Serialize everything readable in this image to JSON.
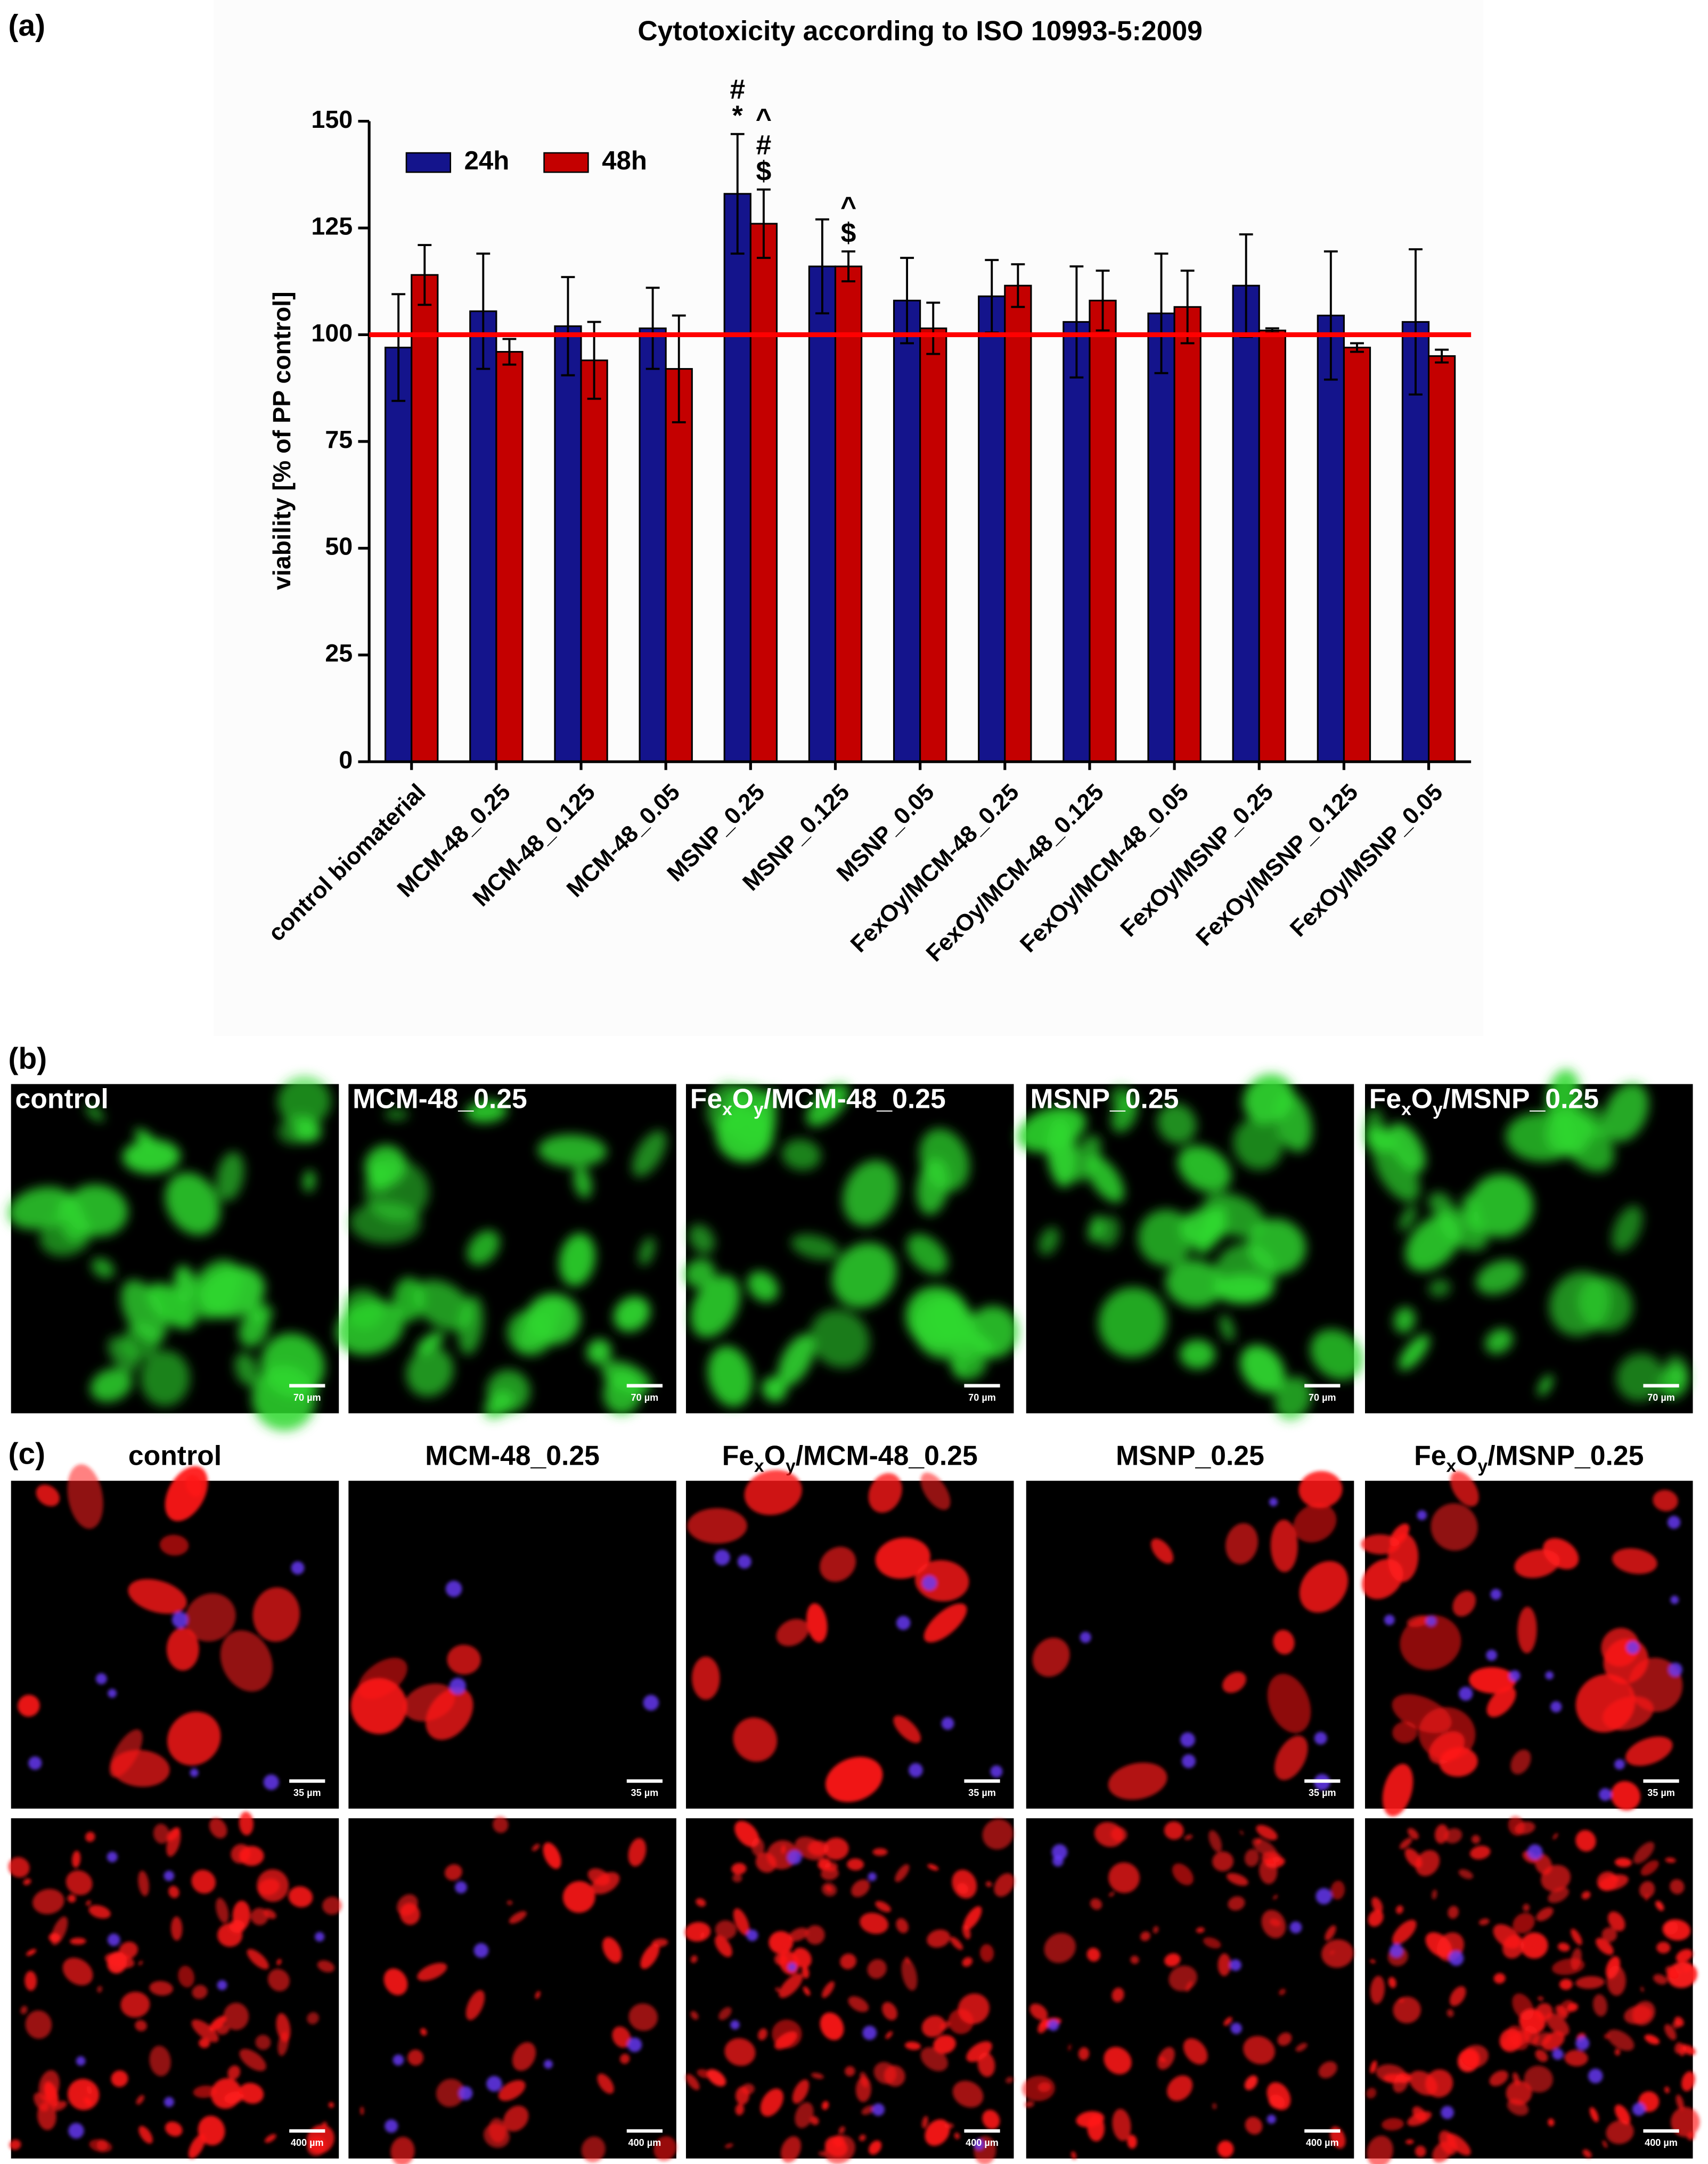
{
  "chart_data": {
    "type": "bar",
    "label": "(a)",
    "title": "Cytotoxicity according to ISO 10993-5:2009",
    "ylabel": "viability [% of PP control]",
    "categories": [
      "control biomaterial",
      "MCM-48_0.25",
      "MCM-48_0.125",
      "MCM-48_0.05",
      "MSNP_0.25",
      "MSNP_0.125",
      "MSNP_0.05",
      "FexOy/MCM-48_0.25",
      "FexOy/MCM-48_0.125",
      "FexOy/MCM-48_0.05",
      "FexOy/MSNP_0.25",
      "FexOy/MSNP_0.125",
      "FexOy/MSNP_0.05"
    ],
    "series": [
      {
        "name": "24h",
        "color": "#14148c",
        "values": [
          97,
          105.5,
          102,
          101.5,
          133,
          116,
          108,
          109,
          103,
          105,
          111.5,
          104.5,
          103
        ],
        "errors": [
          12.5,
          13.5,
          11.5,
          9.5,
          14,
          11,
          10,
          8.5,
          13,
          14,
          12,
          15,
          17
        ]
      },
      {
        "name": "48h",
        "color": "#c40000",
        "values": [
          114,
          96,
          94,
          92,
          126,
          116,
          101.5,
          111.5,
          108,
          106.5,
          101,
          97,
          95
        ],
        "errors": [
          7,
          3,
          9,
          12.5,
          8,
          3.5,
          6,
          5,
          7,
          8.5,
          0.5,
          1,
          1.5
        ]
      }
    ],
    "ylim": [
      0,
      150
    ],
    "yticks": [
      0,
      25,
      50,
      75,
      100,
      125,
      150
    ],
    "reference_line": {
      "value": 100,
      "color": "#ff0000"
    },
    "legend": "upper left",
    "annotations": [
      {
        "category": "MSNP_0.25",
        "series": "24h",
        "lines": [
          "#",
          "*"
        ]
      },
      {
        "category": "MSNP_0.25",
        "series": "48h",
        "lines": [
          "^",
          "#",
          "$"
        ]
      },
      {
        "category": "MSNP_0.125",
        "series": "48h",
        "lines": [
          "^",
          "$"
        ]
      }
    ]
  },
  "panel_b": {
    "label": "(b)",
    "images": [
      {
        "title": [
          "control"
        ],
        "scale_bar": "70 µm"
      },
      {
        "title": [
          "MCM-48_0.25"
        ],
        "scale_bar": "70 µm"
      },
      {
        "title": [
          "Fe",
          "x",
          "O",
          "y",
          "/MCM-48_0.25"
        ],
        "scale_bar": "70 µm"
      },
      {
        "title": [
          "MSNP_0.25"
        ],
        "scale_bar": "70 µm"
      },
      {
        "title": [
          "Fe",
          "x",
          "O",
          "y",
          "/MSNP_0.25"
        ],
        "scale_bar": "70 µm"
      }
    ]
  },
  "panel_c": {
    "label": "(c)",
    "images": [
      {
        "title": [
          "control"
        ],
        "scale_bars": [
          "35 µm",
          "400 µm"
        ]
      },
      {
        "title": [
          "MCM-48_0.25"
        ],
        "scale_bars": [
          "35 µm",
          "400 µm"
        ]
      },
      {
        "title": [
          "Fe",
          "x",
          "O",
          "y",
          "/MCM-48_0.25"
        ],
        "scale_bars": [
          "35 µm",
          "400 µm"
        ]
      },
      {
        "title": [
          "MSNP_0.25"
        ],
        "scale_bars": [
          "35 µm",
          "400 µm"
        ]
      },
      {
        "title": [
          "Fe",
          "x",
          "O",
          "y",
          "/MSNP_0.25"
        ],
        "scale_bars": [
          "35 µm",
          "400 µm"
        ]
      }
    ]
  }
}
